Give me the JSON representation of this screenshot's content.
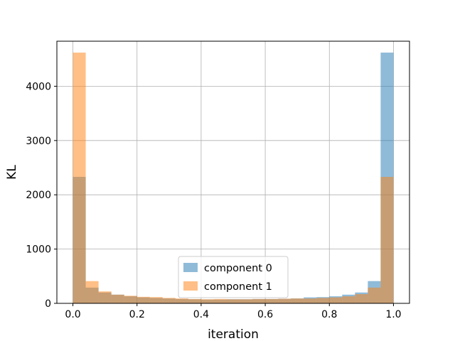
{
  "chart_data": {
    "type": "bar",
    "histogram": true,
    "xlabel": "iteration",
    "ylabel": "KL",
    "xlim": [
      -0.05,
      1.05
    ],
    "ylim": [
      0,
      4830
    ],
    "xticks": [
      0.0,
      0.2,
      0.4,
      0.6,
      0.8,
      1.0
    ],
    "xtick_labels": [
      "0.0",
      "0.2",
      "0.4",
      "0.6",
      "0.8",
      "1.0"
    ],
    "yticks": [
      0,
      1000,
      2000,
      3000,
      4000
    ],
    "ytick_labels": [
      "0",
      "1000",
      "2000",
      "3000",
      "4000"
    ],
    "grid": true,
    "legend_position": "lower center",
    "bin_edges": [
      0.0,
      0.04,
      0.08,
      0.12,
      0.16,
      0.2,
      0.24,
      0.28,
      0.32,
      0.36,
      0.4,
      0.44,
      0.48,
      0.52,
      0.56,
      0.6,
      0.64,
      0.68,
      0.72,
      0.76,
      0.8,
      0.84,
      0.88,
      0.92,
      0.96,
      1.0
    ],
    "series": [
      {
        "name": "component 0",
        "color": "#1f77b4",
        "alpha": 0.5,
        "values": [
          2330,
          290,
          200,
          160,
          130,
          110,
          100,
          90,
          80,
          75,
          70,
          70,
          75,
          75,
          80,
          80,
          85,
          90,
          110,
          115,
          130,
          160,
          200,
          410,
          4620
        ]
      },
      {
        "name": "component 1",
        "color": "#ff7f0e",
        "alpha": 0.5,
        "values": [
          4620,
          410,
          220,
          160,
          140,
          120,
          115,
          100,
          90,
          80,
          75,
          80,
          75,
          75,
          80,
          80,
          85,
          90,
          90,
          100,
          110,
          130,
          170,
          290,
          2330
        ]
      }
    ]
  }
}
